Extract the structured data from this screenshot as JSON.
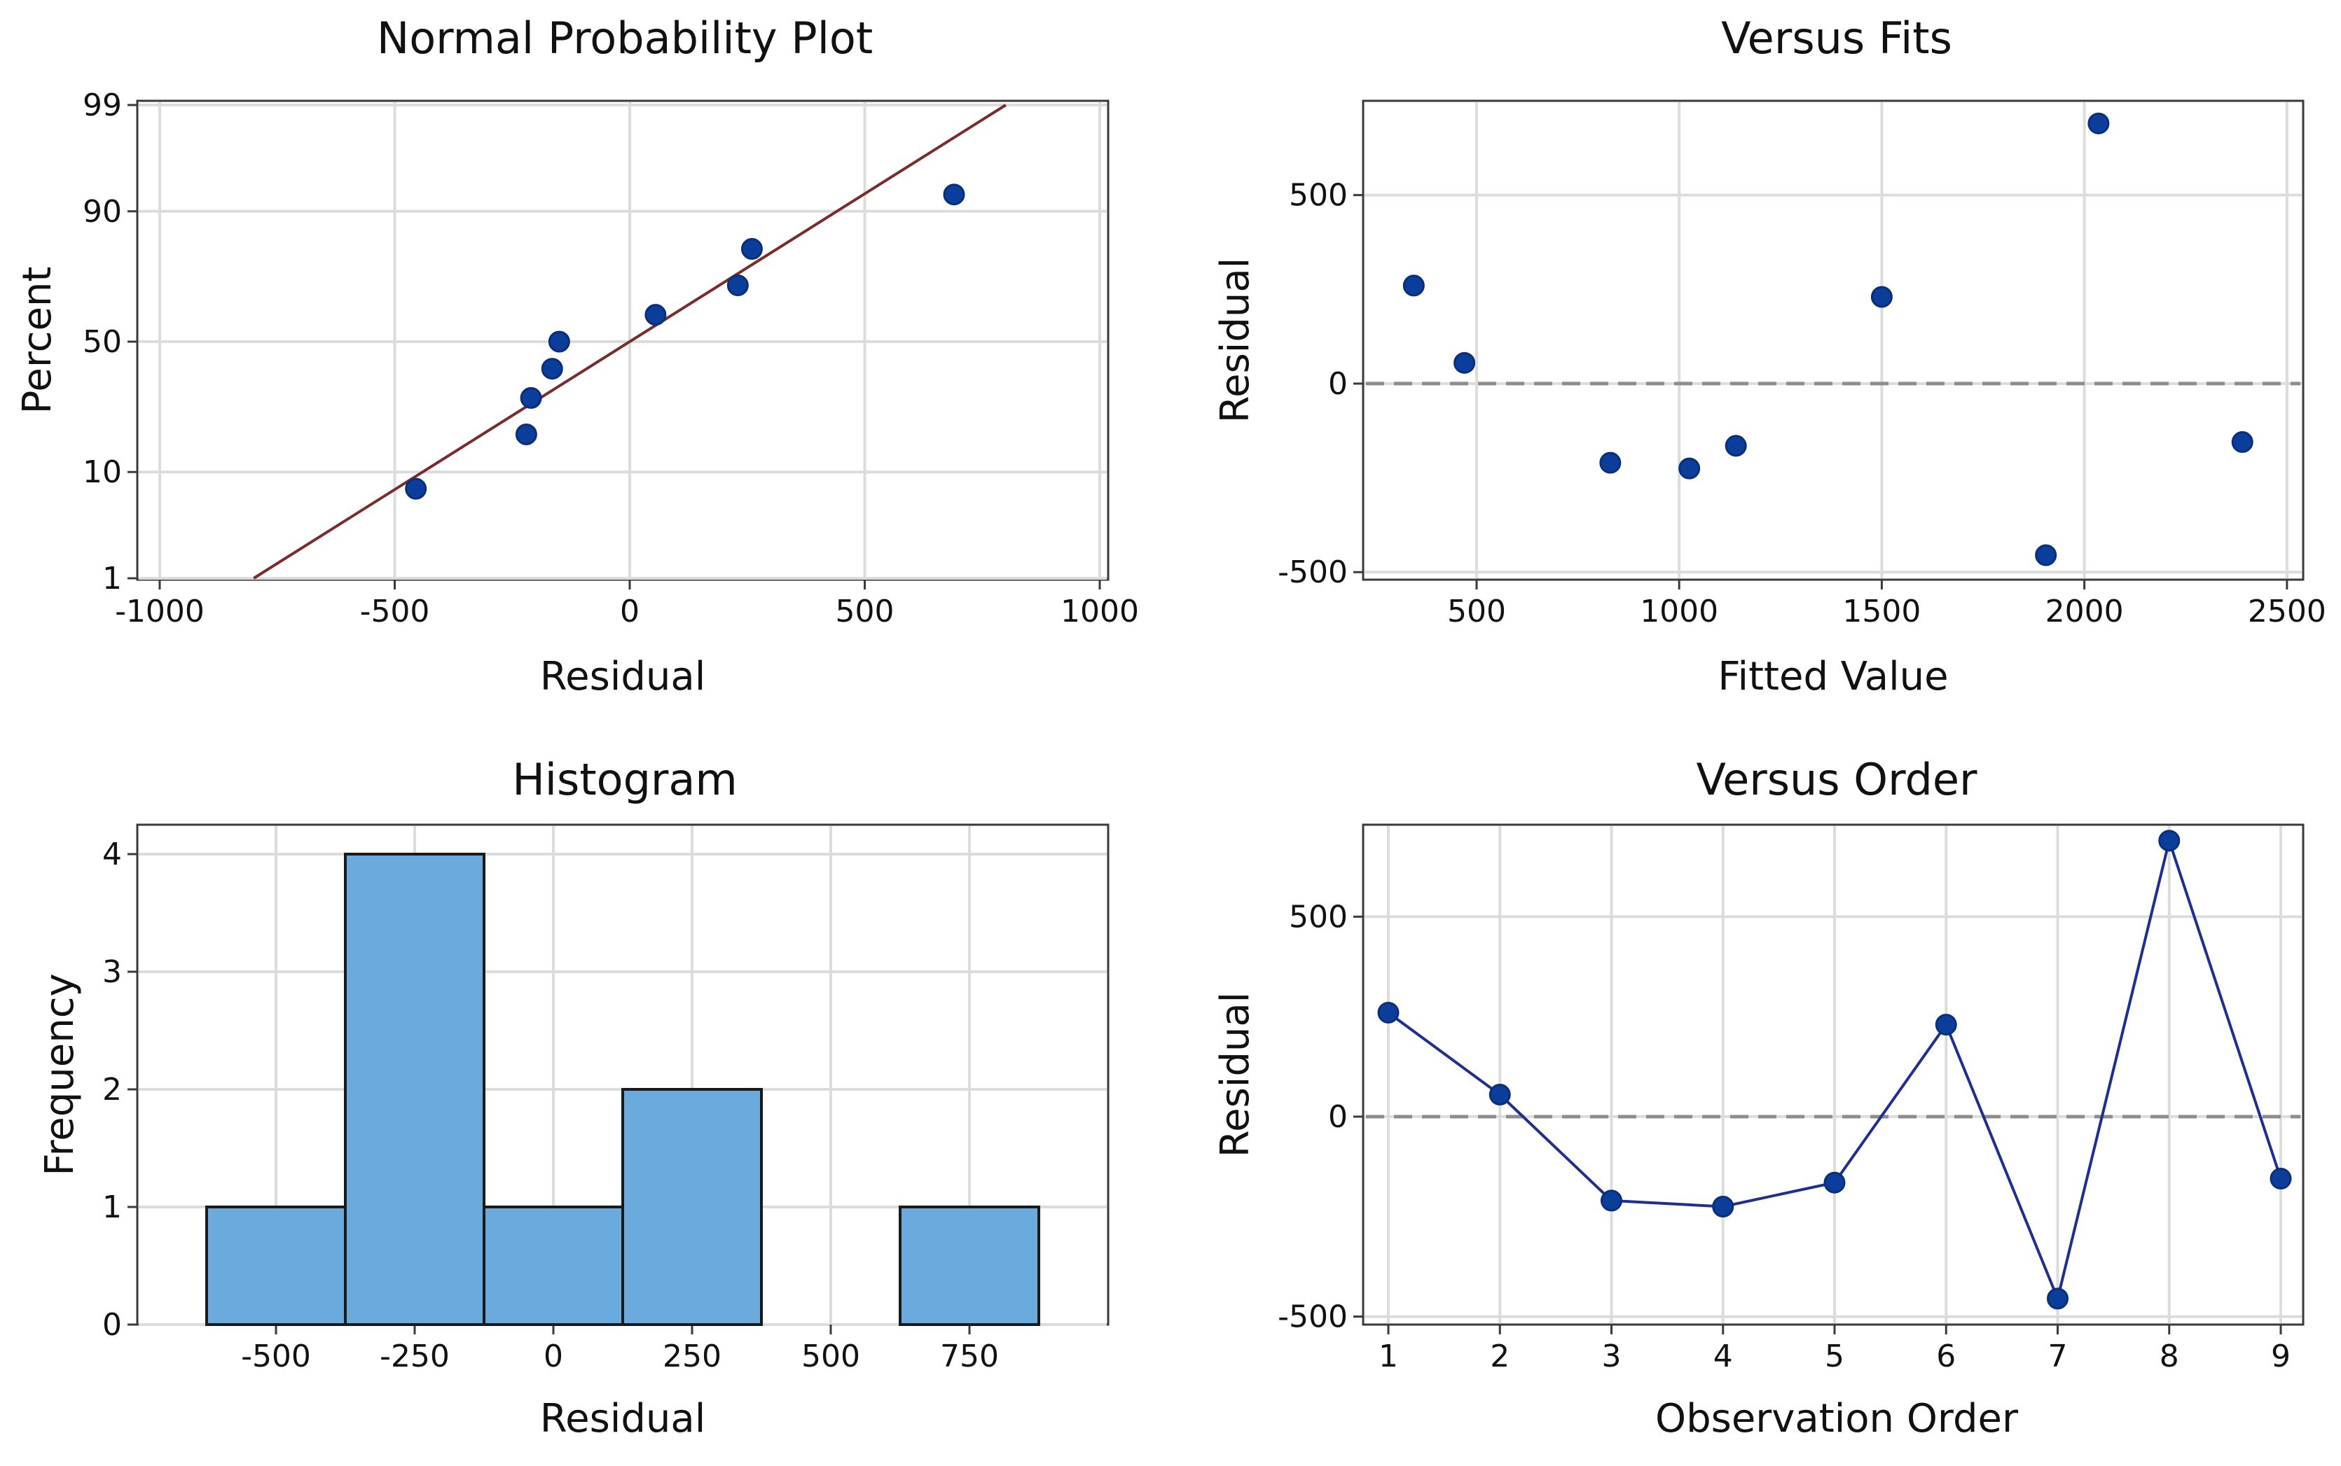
{
  "chart_data": [
    {
      "type": "scatter",
      "title": "Normal Probability Plot",
      "xlabel": "Residual",
      "ylabel": "Percent",
      "xlim": [
        -1000,
        1000
      ],
      "xticks": [
        -1000,
        -500,
        0,
        500,
        1000
      ],
      "xtick_labels": [
        "-1000",
        "-500",
        "0",
        "500",
        "1000"
      ],
      "yticks": [
        1,
        10,
        50,
        90,
        99
      ],
      "ytick_labels": [
        "1",
        "10",
        "50",
        "90",
        "99"
      ],
      "points": [
        {
          "x": -455,
          "y": 7.4
        },
        {
          "x": -220,
          "y": 18.1
        },
        {
          "x": -210,
          "y": 29.0
        },
        {
          "x": -165,
          "y": 39.5
        },
        {
          "x": -150,
          "y": 50.0
        },
        {
          "x": 55,
          "y": 60.4
        },
        {
          "x": 230,
          "y": 71.0
        },
        {
          "x": 260,
          "y": 81.9
        },
        {
          "x": 690,
          "y": 92.6
        }
      ],
      "fit_line": {
        "x": [
          -800,
          800
        ],
        "y": [
          1,
          99
        ]
      }
    },
    {
      "type": "scatter",
      "title": "Versus Fits",
      "xlabel": "Fitted Value",
      "ylabel": "Residual",
      "xlim": [
        220,
        2540
      ],
      "ylim": [
        -520,
        750
      ],
      "xticks": [
        500,
        1000,
        1500,
        2000,
        2500
      ],
      "xtick_labels": [
        "500",
        "1000",
        "1500",
        "2000",
        "2500"
      ],
      "yticks": [
        -500,
        0,
        500
      ],
      "ytick_labels": [
        "-500",
        "0",
        "500"
      ],
      "reference_line": 0,
      "points": [
        {
          "x": 345,
          "y": 260
        },
        {
          "x": 470,
          "y": 55
        },
        {
          "x": 830,
          "y": -210
        },
        {
          "x": 1025,
          "y": -225
        },
        {
          "x": 1140,
          "y": -165
        },
        {
          "x": 1500,
          "y": 230
        },
        {
          "x": 1905,
          "y": -455
        },
        {
          "x": 2035,
          "y": 690
        },
        {
          "x": 2390,
          "y": -155
        }
      ]
    },
    {
      "type": "bar",
      "title": "Histogram",
      "xlabel": "Residual",
      "ylabel": "Frequency",
      "xlim": [
        -750,
        1000
      ],
      "ylim": [
        0,
        4.25
      ],
      "bin_width": 250,
      "bin_centers": [
        -500,
        -250,
        0,
        250,
        500,
        750
      ],
      "values": [
        1,
        4,
        1,
        2,
        0,
        1
      ],
      "xticks": [
        -500,
        -250,
        0,
        250,
        500,
        750
      ],
      "xtick_labels": [
        "-500",
        "-250",
        "0",
        "250",
        "500",
        "750"
      ],
      "yticks": [
        0,
        1,
        2,
        3,
        4
      ],
      "ytick_labels": [
        "0",
        "1",
        "2",
        "3",
        "4"
      ]
    },
    {
      "type": "line",
      "title": "Versus Order",
      "xlabel": "Observation Order",
      "ylabel": "Residual",
      "xlim": [
        1,
        9
      ],
      "ylim": [
        -520,
        730
      ],
      "xticks": [
        1,
        2,
        3,
        4,
        5,
        6,
        7,
        8,
        9
      ],
      "xtick_labels": [
        "1",
        "2",
        "3",
        "4",
        "5",
        "6",
        "7",
        "8",
        "9"
      ],
      "yticks": [
        -500,
        0,
        500
      ],
      "ytick_labels": [
        "-500",
        "0",
        "500"
      ],
      "reference_line": 0,
      "x": [
        1,
        2,
        3,
        4,
        5,
        6,
        7,
        8,
        9
      ],
      "y": [
        260,
        55,
        -210,
        -225,
        -165,
        230,
        -455,
        690,
        -155
      ]
    }
  ]
}
